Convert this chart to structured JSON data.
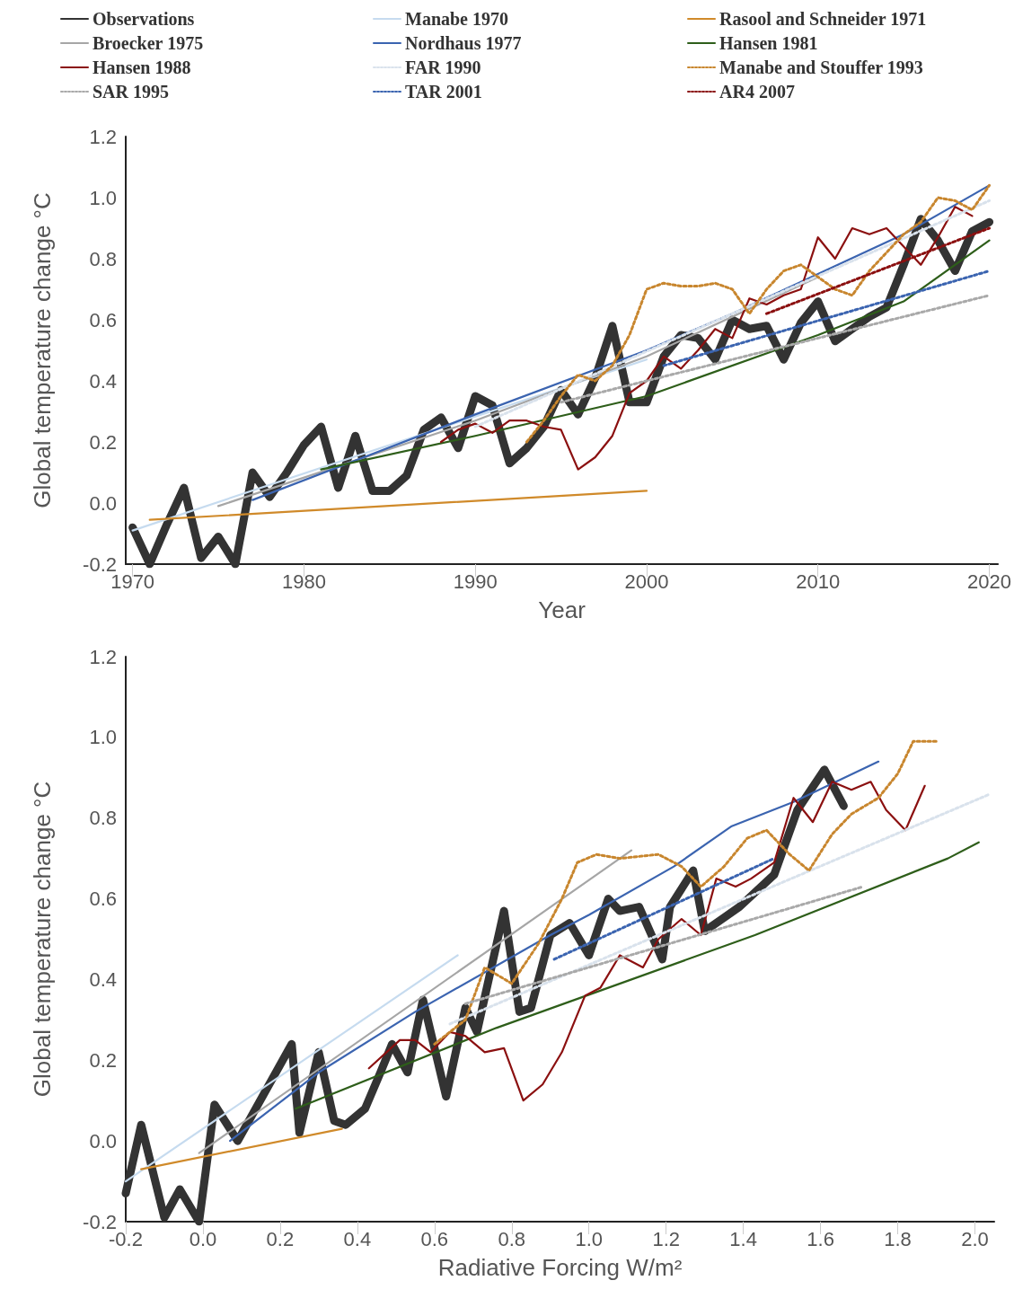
{
  "chart_data": [
    {
      "type": "line",
      "xlabel": "Year",
      "ylabel": "Global temperature change °C",
      "xlim": [
        1969.6,
        2020.5
      ],
      "ylim": [
        -0.2,
        1.2
      ],
      "xticks": [
        1970,
        1980,
        1990,
        2000,
        2010,
        2020
      ],
      "yticks": [
        {
          "value": -0.2,
          "label": "-0.2"
        },
        {
          "value": 0,
          "label": "0.0"
        },
        {
          "value": 0.2,
          "label": "0.2"
        },
        {
          "value": 0.4,
          "label": "0.4"
        },
        {
          "value": 0.6,
          "label": "0.6"
        },
        {
          "value": 0.8,
          "label": "0.8"
        },
        {
          "value": 1,
          "label": "1.0"
        },
        {
          "value": 1.2,
          "label": "1.2"
        }
      ],
      "legend": "top",
      "marker": "none",
      "grid": false,
      "series": [
        {
          "name": "Observations",
          "color": "#333333",
          "line_style": "solid",
          "x": [
            1970,
            1971,
            1972,
            1973,
            1974,
            1975,
            1976,
            1977,
            1978,
            1979,
            1980,
            1981,
            1982,
            1983,
            1984,
            1985,
            1986,
            1987,
            1988,
            1989,
            1990,
            1991,
            1992,
            1993,
            1994,
            1995,
            1996,
            1997,
            1998,
            1999,
            2000,
            2001,
            2002,
            2003,
            2004,
            2005,
            2006,
            2007,
            2008,
            2009,
            2010,
            2011,
            2012,
            2013,
            2014,
            2015,
            2016,
            2017,
            2018,
            2019,
            2020
          ],
          "values": [
            -0.08,
            -0.2,
            -0.07,
            0.05,
            -0.18,
            -0.11,
            -0.2,
            0.1,
            0.02,
            0.1,
            0.19,
            0.25,
            0.05,
            0.22,
            0.04,
            0.04,
            0.09,
            0.24,
            0.28,
            0.18,
            0.35,
            0.32,
            0.13,
            0.18,
            0.25,
            0.37,
            0.29,
            0.41,
            0.58,
            0.33,
            0.33,
            0.48,
            0.55,
            0.54,
            0.47,
            0.6,
            0.57,
            0.58,
            0.47,
            0.59,
            0.66,
            0.53,
            0.57,
            0.61,
            0.64,
            0.78,
            0.93,
            0.86,
            0.76,
            0.89,
            0.92
          ]
        },
        {
          "name": "Manabe 1970",
          "color": "#c6dbef",
          "line_style": "solid",
          "x": [
            1970,
            2000
          ],
          "values": [
            -0.09,
            0.47
          ]
        },
        {
          "name": "Rasool and Schneider 1971",
          "color": "#d08a2a",
          "line_style": "solid",
          "x": [
            1971,
            2000
          ],
          "values": [
            -0.055,
            0.04
          ]
        },
        {
          "name": "Broecker 1975",
          "color": "#a6a6a6",
          "line_style": "solid",
          "x": [
            1975,
            1990,
            2000,
            2010
          ],
          "values": [
            -0.01,
            0.27,
            0.48,
            0.74
          ]
        },
        {
          "name": "Nordhaus 1977",
          "color": "#3b64b0",
          "line_style": "solid",
          "x": [
            1977,
            1990,
            2000,
            2005,
            2010,
            2015,
            2020
          ],
          "values": [
            0.01,
            0.29,
            0.5,
            0.62,
            0.75,
            0.88,
            1.04
          ]
        },
        {
          "name": "Hansen 1981",
          "color": "#2e5e1a",
          "line_style": "solid",
          "x": [
            1981,
            1990,
            2000,
            2010,
            2015,
            2020
          ],
          "values": [
            0.11,
            0.22,
            0.35,
            0.55,
            0.66,
            0.86
          ]
        },
        {
          "name": "Hansen 1988",
          "color": "#8b1010",
          "line_style": "solid",
          "x": [
            1988,
            1989,
            1990,
            1991,
            1992,
            1993,
            1994,
            1995,
            1996,
            1997,
            1998,
            1999,
            2000,
            2001,
            2002,
            2003,
            2004,
            2005,
            2006,
            2007,
            2008,
            2009,
            2010,
            2011,
            2012,
            2013,
            2014,
            2015,
            2016,
            2017,
            2018,
            2019
          ],
          "values": [
            0.2,
            0.24,
            0.26,
            0.23,
            0.27,
            0.27,
            0.25,
            0.24,
            0.11,
            0.15,
            0.22,
            0.36,
            0.4,
            0.48,
            0.44,
            0.5,
            0.57,
            0.54,
            0.67,
            0.65,
            0.68,
            0.7,
            0.87,
            0.8,
            0.9,
            0.88,
            0.9,
            0.84,
            0.78,
            0.87,
            0.97,
            0.94
          ]
        },
        {
          "name": "FAR 1990",
          "color": "#d9e2ec",
          "line_style": "dotted",
          "x": [
            1990,
            2020
          ],
          "values": [
            0.25,
            0.99
          ]
        },
        {
          "name": "Manabe and Stouffer 1993",
          "color": "#c8862e",
          "line_style": "dotted",
          "x": [
            1993,
            1994,
            1995,
            1996,
            1997,
            1998,
            1999,
            2000,
            2001,
            2002,
            2003,
            2004,
            2005,
            2006,
            2007,
            2008,
            2009,
            2010,
            2011,
            2012,
            2013,
            2014,
            2015,
            2016,
            2017,
            2018,
            2019,
            2020
          ],
          "values": [
            0.2,
            0.27,
            0.35,
            0.42,
            0.4,
            0.45,
            0.55,
            0.7,
            0.72,
            0.71,
            0.71,
            0.72,
            0.7,
            0.62,
            0.7,
            0.76,
            0.78,
            0.74,
            0.7,
            0.68,
            0.76,
            0.82,
            0.88,
            0.92,
            1.0,
            0.99,
            0.96,
            1.04
          ]
        },
        {
          "name": "SAR 1995",
          "color": "#a9a9a9",
          "line_style": "dotted",
          "x": [
            1995,
            2020
          ],
          "values": [
            0.33,
            0.68
          ]
        },
        {
          "name": "TAR 2001",
          "color": "#3b64b0",
          "line_style": "dotted",
          "x": [
            2001,
            2020
          ],
          "values": [
            0.45,
            0.76
          ]
        },
        {
          "name": "AR4 2007",
          "color": "#8b1010",
          "line_style": "dotted",
          "x": [
            2007,
            2020
          ],
          "values": [
            0.62,
            0.9
          ]
        }
      ]
    },
    {
      "type": "line",
      "xlabel": "Radiative Forcing W/m²",
      "ylabel": "Global temperature change °C",
      "xlim": [
        -0.2,
        2.05
      ],
      "ylim": [
        -0.2,
        1.2
      ],
      "xticks": [
        {
          "value": -0.2,
          "label": "-0.2"
        },
        {
          "value": 0,
          "label": "0.0"
        },
        {
          "value": 0.2,
          "label": "0.2"
        },
        {
          "value": 0.4,
          "label": "0.4"
        },
        {
          "value": 0.6,
          "label": "0.6"
        },
        {
          "value": 0.8,
          "label": "0.8"
        },
        {
          "value": 1,
          "label": "1.0"
        },
        {
          "value": 1.2,
          "label": "1.2"
        },
        {
          "value": 1.4,
          "label": "1.4"
        },
        {
          "value": 1.6,
          "label": "1.6"
        },
        {
          "value": 1.8,
          "label": "1.8"
        },
        {
          "value": 2,
          "label": "2.0"
        }
      ],
      "yticks": [
        {
          "value": -0.2,
          "label": "-0.2"
        },
        {
          "value": 0,
          "label": "0.0"
        },
        {
          "value": 0.2,
          "label": "0.2"
        },
        {
          "value": 0.4,
          "label": "0.4"
        },
        {
          "value": 0.6,
          "label": "0.6"
        },
        {
          "value": 0.8,
          "label": "0.8"
        },
        {
          "value": 1,
          "label": "1.0"
        },
        {
          "value": 1.2,
          "label": "1.2"
        }
      ],
      "legend": false,
      "marker": "none",
      "grid": false,
      "series": [
        {
          "color": "#333333",
          "line_style": "solid",
          "x": [
            -0.2,
            -0.16,
            -0.1,
            -0.06,
            -0.01,
            0.03,
            0.09,
            0.23,
            0.25,
            0.3,
            0.34,
            0.37,
            0.42,
            0.46,
            0.49,
            0.53,
            0.57,
            0.63,
            0.68,
            0.71,
            0.78,
            0.82,
            0.85,
            0.9,
            0.95,
            1.0,
            1.05,
            1.08,
            1.13,
            1.19,
            1.21,
            1.27,
            1.3,
            1.39,
            1.48,
            1.54,
            1.61,
            1.66
          ],
          "values": [
            -0.13,
            0.04,
            -0.19,
            -0.12,
            -0.2,
            0.09,
            0.0,
            0.24,
            0.02,
            0.22,
            0.05,
            0.04,
            0.08,
            0.17,
            0.24,
            0.17,
            0.35,
            0.11,
            0.33,
            0.27,
            0.57,
            0.32,
            0.33,
            0.51,
            0.54,
            0.46,
            0.6,
            0.57,
            0.58,
            0.45,
            0.58,
            0.67,
            0.52,
            0.58,
            0.66,
            0.82,
            0.92,
            0.83
          ]
        },
        {
          "color": "#c6dbef",
          "line_style": "solid",
          "x": [
            -0.2,
            0.66
          ],
          "values": [
            -0.1,
            0.46
          ]
        },
        {
          "color": "#d08a2a",
          "line_style": "solid",
          "x": [
            -0.16,
            0.36
          ],
          "values": [
            -0.07,
            0.03
          ]
        },
        {
          "color": "#a6a6a6",
          "line_style": "solid",
          "x": [
            -0.01,
            1.11
          ],
          "values": [
            -0.03,
            0.72
          ]
        },
        {
          "color": "#3b64b0",
          "line_style": "solid",
          "x": [
            0.07,
            0.3,
            0.55,
            0.9,
            1.0,
            1.22,
            1.37,
            1.53,
            1.75
          ],
          "values": [
            0.0,
            0.17,
            0.32,
            0.51,
            0.56,
            0.68,
            0.78,
            0.84,
            0.94
          ]
        },
        {
          "color": "#2e5e1a",
          "line_style": "solid",
          "x": [
            0.24,
            0.76,
            1.43,
            1.93,
            2.01
          ],
          "values": [
            0.08,
            0.28,
            0.51,
            0.7,
            0.74
          ]
        },
        {
          "color": "#8b1010",
          "line_style": "solid",
          "x": [
            0.43,
            0.51,
            0.55,
            0.59,
            0.64,
            0.68,
            0.73,
            0.78,
            0.83,
            0.88,
            0.93,
            0.99,
            1.03,
            1.08,
            1.14,
            1.18,
            1.24,
            1.29,
            1.33,
            1.38,
            1.42,
            1.48,
            1.53,
            1.58,
            1.63,
            1.68,
            1.73,
            1.77,
            1.82,
            1.87
          ],
          "values": [
            0.18,
            0.25,
            0.25,
            0.22,
            0.27,
            0.26,
            0.22,
            0.23,
            0.1,
            0.14,
            0.22,
            0.36,
            0.38,
            0.46,
            0.43,
            0.5,
            0.55,
            0.51,
            0.65,
            0.63,
            0.65,
            0.69,
            0.85,
            0.79,
            0.89,
            0.87,
            0.89,
            0.82,
            0.77,
            0.88
          ]
        },
        {
          "color": "#d9e2ec",
          "line_style": "dotted",
          "x": [
            0.64,
            2.04
          ],
          "values": [
            0.29,
            0.86
          ]
        },
        {
          "color": "#c8862e",
          "line_style": "dotted",
          "x": [
            0.6,
            0.68,
            0.73,
            0.8,
            0.87,
            0.93,
            0.97,
            1.02,
            1.08,
            1.18,
            1.24,
            1.29,
            1.35,
            1.41,
            1.46,
            1.52,
            1.57,
            1.63,
            1.68,
            1.75,
            1.8,
            1.84,
            1.9
          ],
          "values": [
            0.24,
            0.3,
            0.43,
            0.39,
            0.49,
            0.6,
            0.69,
            0.71,
            0.7,
            0.71,
            0.68,
            0.63,
            0.68,
            0.75,
            0.77,
            0.71,
            0.67,
            0.76,
            0.81,
            0.85,
            0.91,
            0.99,
            0.99
          ]
        },
        {
          "color": "#a9a9a9",
          "line_style": "dotted",
          "x": [
            0.68,
            1.71
          ],
          "values": [
            0.34,
            0.63
          ]
        },
        {
          "color": "#3b64b0",
          "line_style": "dotted",
          "x": [
            0.91,
            1.48
          ],
          "values": [
            0.45,
            0.7
          ]
        }
      ]
    }
  ]
}
